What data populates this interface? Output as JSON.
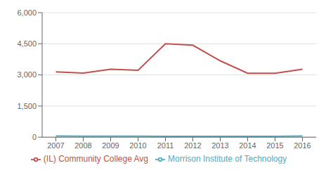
{
  "chart_data": {
    "type": "line",
    "x": [
      2007,
      2008,
      2009,
      2010,
      2011,
      2012,
      2013,
      2014,
      2015,
      2016
    ],
    "xlim": [
      2006.5,
      2016.5
    ],
    "xticks": [
      2007,
      2008,
      2009,
      2010,
      2011,
      2012,
      2013,
      2014,
      2015,
      2016
    ],
    "ylim": [
      0,
      6000
    ],
    "yticks": [
      0,
      {
        "value": 1500,
        "label": "1,500"
      },
      {
        "value": 3000,
        "label": "3,000"
      },
      {
        "value": 4500,
        "label": "4,500"
      },
      {
        "value": 6000,
        "label": "6,000"
      }
    ],
    "grid": true,
    "legend": "bottom",
    "series": [
      {
        "name": "Morrison Institute of Technology",
        "color": "#4bacc6",
        "values": [
          55,
          50,
          48,
          45,
          43,
          42,
          40,
          38,
          42,
          55
        ]
      },
      {
        "name": "(IL) Community College Avg",
        "color": "#c0504d",
        "values": [
          3150,
          3090,
          3270,
          3220,
          4500,
          4430,
          3680,
          3080,
          3080,
          3270
        ]
      }
    ]
  }
}
